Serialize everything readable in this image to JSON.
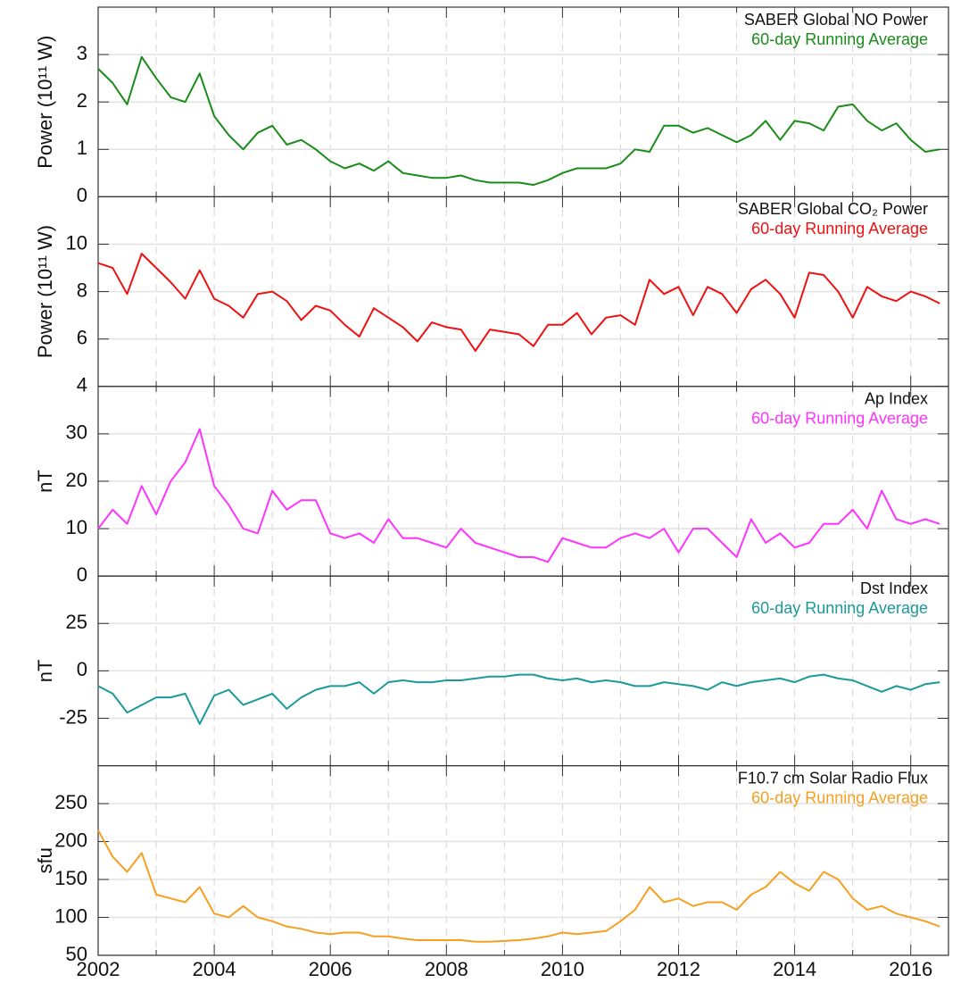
{
  "chart_data": [
    {
      "type": "line",
      "title": "SABER Global NO Power",
      "subtitle": "60-day Running Average",
      "ylabel": "Power (10¹¹ W)",
      "color": "#1a8c1a",
      "x": [
        2002,
        2002.25,
        2002.5,
        2002.75,
        2003,
        2003.25,
        2003.5,
        2003.75,
        2004,
        2004.25,
        2004.5,
        2004.75,
        2005,
        2005.25,
        2005.5,
        2005.75,
        2006,
        2006.25,
        2006.5,
        2006.75,
        2007,
        2007.25,
        2007.5,
        2007.75,
        2008,
        2008.25,
        2008.5,
        2008.75,
        2009,
        2009.25,
        2009.5,
        2009.75,
        2010,
        2010.25,
        2010.5,
        2010.75,
        2011,
        2011.25,
        2011.5,
        2011.75,
        2012,
        2012.25,
        2012.5,
        2012.75,
        2013,
        2013.25,
        2013.5,
        2013.75,
        2014,
        2014.25,
        2014.5,
        2014.75,
        2015,
        2015.25,
        2015.5,
        2015.75,
        2016,
        2016.25,
        2016.5
      ],
      "values": [
        2.7,
        2.4,
        1.95,
        2.95,
        2.5,
        2.1,
        2.0,
        2.6,
        1.7,
        1.3,
        1.0,
        1.35,
        1.5,
        1.1,
        1.2,
        1.0,
        0.75,
        0.6,
        0.7,
        0.55,
        0.75,
        0.5,
        0.45,
        0.4,
        0.4,
        0.45,
        0.35,
        0.3,
        0.3,
        0.3,
        0.25,
        0.35,
        0.5,
        0.6,
        0.6,
        0.6,
        0.7,
        1.0,
        0.95,
        1.5,
        1.5,
        1.35,
        1.45,
        1.3,
        1.15,
        1.3,
        1.6,
        1.2,
        1.6,
        1.55,
        1.4,
        1.9,
        1.95,
        1.6,
        1.4,
        1.55,
        1.2,
        0.95,
        1.0
      ],
      "xlim": [
        2002,
        2016.65
      ],
      "xticks": [
        2002,
        2004,
        2006,
        2008,
        2010,
        2012,
        2014,
        2016
      ],
      "x_minor_ticks": [
        2003,
        2005,
        2007,
        2009,
        2011,
        2013,
        2015
      ],
      "ylim": [
        0,
        4
      ],
      "yticks": [
        0,
        1,
        2,
        3
      ],
      "grid": true
    },
    {
      "type": "line",
      "title": "SABER Global CO₂ Power",
      "subtitle": "60-day Running Average",
      "ylabel": "Power (10¹¹ W)",
      "color": "#ee1111",
      "x": [
        2002,
        2002.25,
        2002.5,
        2002.75,
        2003,
        2003.25,
        2003.5,
        2003.75,
        2004,
        2004.25,
        2004.5,
        2004.75,
        2005,
        2005.25,
        2005.5,
        2005.75,
        2006,
        2006.25,
        2006.5,
        2006.75,
        2007,
        2007.25,
        2007.5,
        2007.75,
        2008,
        2008.25,
        2008.5,
        2008.75,
        2009,
        2009.25,
        2009.5,
        2009.75,
        2010,
        2010.25,
        2010.5,
        2010.75,
        2011,
        2011.25,
        2011.5,
        2011.75,
        2012,
        2012.25,
        2012.5,
        2012.75,
        2013,
        2013.25,
        2013.5,
        2013.75,
        2014,
        2014.25,
        2014.5,
        2014.75,
        2015,
        2015.25,
        2015.5,
        2015.75,
        2016,
        2016.25,
        2016.5
      ],
      "values": [
        9.2,
        9.0,
        7.9,
        9.6,
        9.0,
        8.4,
        7.7,
        8.9,
        7.7,
        7.4,
        6.9,
        7.9,
        8.0,
        7.6,
        6.8,
        7.4,
        7.2,
        6.6,
        6.1,
        7.3,
        6.9,
        6.5,
        5.9,
        6.7,
        6.5,
        6.4,
        5.5,
        6.4,
        6.3,
        6.2,
        5.7,
        6.6,
        6.6,
        7.1,
        6.2,
        6.9,
        7.0,
        6.6,
        8.5,
        7.9,
        8.2,
        7.0,
        8.2,
        7.9,
        7.1,
        8.1,
        8.5,
        7.9,
        6.9,
        8.8,
        8.7,
        8.0,
        6.9,
        8.2,
        7.8,
        7.6,
        8.0,
        7.8,
        7.5
      ],
      "xlim": [
        2002,
        2016.65
      ],
      "xticks": [
        2002,
        2004,
        2006,
        2008,
        2010,
        2012,
        2014,
        2016
      ],
      "x_minor_ticks": [
        2003,
        2005,
        2007,
        2009,
        2011,
        2013,
        2015
      ],
      "ylim": [
        4,
        12
      ],
      "yticks": [
        4,
        6,
        8,
        10
      ],
      "grid": true
    },
    {
      "type": "line",
      "title": "Ap Index",
      "subtitle": "60-day Running Average",
      "ylabel": "nT",
      "color": "#ff33ff",
      "x": [
        2002,
        2002.25,
        2002.5,
        2002.75,
        2003,
        2003.25,
        2003.5,
        2003.75,
        2004,
        2004.25,
        2004.5,
        2004.75,
        2005,
        2005.25,
        2005.5,
        2005.75,
        2006,
        2006.25,
        2006.5,
        2006.75,
        2007,
        2007.25,
        2007.5,
        2007.75,
        2008,
        2008.25,
        2008.5,
        2008.75,
        2009,
        2009.25,
        2009.5,
        2009.75,
        2010,
        2010.25,
        2010.5,
        2010.75,
        2011,
        2011.25,
        2011.5,
        2011.75,
        2012,
        2012.25,
        2012.5,
        2012.75,
        2013,
        2013.25,
        2013.5,
        2013.75,
        2014,
        2014.25,
        2014.5,
        2014.75,
        2015,
        2015.25,
        2015.5,
        2015.75,
        2016,
        2016.25,
        2016.5
      ],
      "values": [
        10,
        14,
        11,
        19,
        13,
        20,
        24,
        31,
        19,
        15,
        10,
        9,
        18,
        14,
        16,
        16,
        9,
        8,
        9,
        7,
        12,
        8,
        8,
        7,
        6,
        10,
        7,
        6,
        5,
        4,
        4,
        3,
        8,
        7,
        6,
        6,
        8,
        9,
        8,
        10,
        5,
        10,
        10,
        7,
        4,
        12,
        7,
        9,
        6,
        7,
        11,
        11,
        14,
        10,
        18,
        12,
        11,
        12,
        11
      ],
      "xlim": [
        2002,
        2016.65
      ],
      "xticks": [
        2002,
        2004,
        2006,
        2008,
        2010,
        2012,
        2014,
        2016
      ],
      "x_minor_ticks": [
        2003,
        2005,
        2007,
        2009,
        2011,
        2013,
        2015
      ],
      "ylim": [
        0,
        40
      ],
      "yticks": [
        0,
        10,
        20,
        30
      ],
      "grid": true
    },
    {
      "type": "line",
      "title": "Dst Index",
      "subtitle": "60-day Running Average",
      "ylabel": "nT",
      "color": "#1a9a9a",
      "x": [
        2002,
        2002.25,
        2002.5,
        2002.75,
        2003,
        2003.25,
        2003.5,
        2003.75,
        2004,
        2004.25,
        2004.5,
        2004.75,
        2005,
        2005.25,
        2005.5,
        2005.75,
        2006,
        2006.25,
        2006.5,
        2006.75,
        2007,
        2007.25,
        2007.5,
        2007.75,
        2008,
        2008.25,
        2008.5,
        2008.75,
        2009,
        2009.25,
        2009.5,
        2009.75,
        2010,
        2010.25,
        2010.5,
        2010.75,
        2011,
        2011.25,
        2011.5,
        2011.75,
        2012,
        2012.25,
        2012.5,
        2012.75,
        2013,
        2013.25,
        2013.5,
        2013.75,
        2014,
        2014.25,
        2014.5,
        2014.75,
        2015,
        2015.25,
        2015.5,
        2015.75,
        2016,
        2016.25,
        2016.5
      ],
      "values": [
        -8,
        -12,
        -22,
        -18,
        -14,
        -14,
        -12,
        -28,
        -13,
        -10,
        -18,
        -15,
        -12,
        -20,
        -14,
        -10,
        -8,
        -8,
        -6,
        -12,
        -6,
        -5,
        -6,
        -6,
        -5,
        -5,
        -4,
        -3,
        -3,
        -2,
        -2,
        -4,
        -5,
        -4,
        -6,
        -5,
        -6,
        -8,
        -8,
        -6,
        -7,
        -8,
        -10,
        -6,
        -8,
        -6,
        -5,
        -4,
        -6,
        -3,
        -2,
        -4,
        -5,
        -8,
        -11,
        -8,
        -10,
        -7,
        -6
      ],
      "xlim": [
        2002,
        2016.65
      ],
      "xticks": [
        2002,
        2004,
        2006,
        2008,
        2010,
        2012,
        2014,
        2016
      ],
      "x_minor_ticks": [
        2003,
        2005,
        2007,
        2009,
        2011,
        2013,
        2015
      ],
      "ylim": [
        -50,
        50
      ],
      "yticks": [
        -25,
        0,
        25
      ],
      "grid": true
    },
    {
      "type": "line",
      "title": "F10.7 cm Solar Radio Flux",
      "subtitle": "60-day Running Average",
      "ylabel": "sfu",
      "color": "#f5a020",
      "x": [
        2002,
        2002.25,
        2002.5,
        2002.75,
        2003,
        2003.25,
        2003.5,
        2003.75,
        2004,
        2004.25,
        2004.5,
        2004.75,
        2005,
        2005.25,
        2005.5,
        2005.75,
        2006,
        2006.25,
        2006.5,
        2006.75,
        2007,
        2007.25,
        2007.5,
        2007.75,
        2008,
        2008.25,
        2008.5,
        2008.75,
        2009,
        2009.25,
        2009.5,
        2009.75,
        2010,
        2010.25,
        2010.5,
        2010.75,
        2011,
        2011.25,
        2011.5,
        2011.75,
        2012,
        2012.25,
        2012.5,
        2012.75,
        2013,
        2013.25,
        2013.5,
        2013.75,
        2014,
        2014.25,
        2014.5,
        2014.75,
        2015,
        2015.25,
        2015.5,
        2015.75,
        2016,
        2016.25,
        2016.5
      ],
      "values": [
        215,
        180,
        160,
        185,
        130,
        125,
        120,
        140,
        105,
        100,
        115,
        100,
        95,
        88,
        85,
        80,
        78,
        80,
        80,
        75,
        75,
        72,
        70,
        70,
        70,
        70,
        68,
        68,
        69,
        70,
        72,
        75,
        80,
        78,
        80,
        82,
        95,
        110,
        140,
        120,
        125,
        115,
        120,
        120,
        110,
        130,
        140,
        160,
        145,
        135,
        160,
        150,
        125,
        110,
        115,
        105,
        100,
        95,
        88
      ],
      "xlim": [
        2002,
        2016.65
      ],
      "xticks": [
        2002,
        2004,
        2006,
        2008,
        2010,
        2012,
        2014,
        2016
      ],
      "x_minor_ticks": [
        2003,
        2005,
        2007,
        2009,
        2011,
        2013,
        2015
      ],
      "ylim": [
        50,
        300
      ],
      "yticks": [
        50,
        100,
        150,
        200,
        250
      ],
      "grid": true
    }
  ]
}
